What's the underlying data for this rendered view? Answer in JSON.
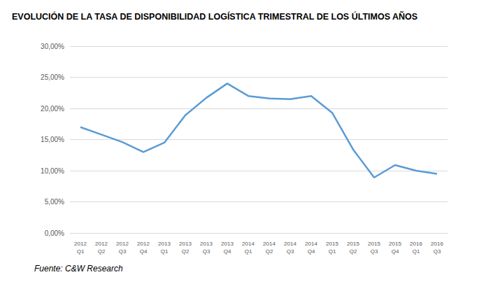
{
  "chart_data": {
    "type": "line",
    "title": "EVOLUCIÓN DE LA TASA DE DISPONIBILIDAD LOGÍSTICA TRIMESTRAL DE LOS ÚLTIMOS AÑOS",
    "source": "Fuente: C&W Research",
    "categories": [
      "2012\nQ1",
      "2012\nQ2",
      "2012\nQ3",
      "2012\nQ4",
      "2013\nQ1",
      "2013\nQ2",
      "2013\nQ3",
      "2013\nQ4",
      "2014\nQ1",
      "2014\nQ2",
      "2014\nQ3",
      "2014\nQ4",
      "2015\nQ1",
      "2015\nQ2",
      "2015\nQ3",
      "2015\nQ4",
      "2016\nQ1",
      "2016\nQ3"
    ],
    "values": [
      17.0,
      15.8,
      14.6,
      13.0,
      14.5,
      18.9,
      21.7,
      24.0,
      22.0,
      21.6,
      21.5,
      22.0,
      19.3,
      13.4,
      8.9,
      10.9,
      10.0,
      9.5
    ],
    "color": "#5b9bd5",
    "ylim": [
      0,
      30
    ],
    "yticks": [
      {
        "value": 0,
        "label": "0,00%"
      },
      {
        "value": 5,
        "label": "5,00%"
      },
      {
        "value": 10,
        "label": "10,00%"
      },
      {
        "value": 15,
        "label": "15,00%"
      },
      {
        "value": 20,
        "label": "20,00%"
      },
      {
        "value": 25,
        "label": "25,00%"
      },
      {
        "value": 30,
        "label": "30,00%"
      }
    ],
    "grid": true
  }
}
